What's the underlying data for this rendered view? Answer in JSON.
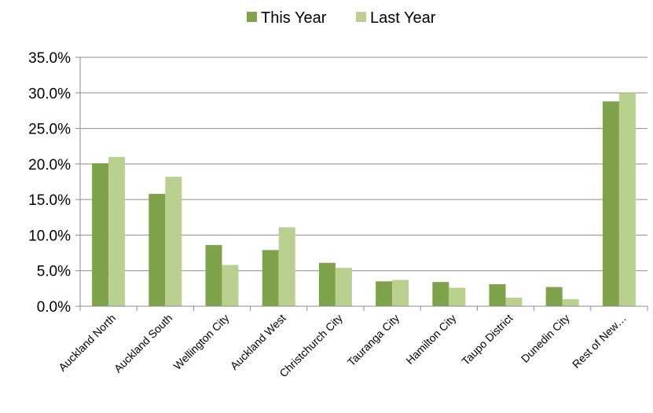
{
  "chart_data": {
    "type": "bar",
    "categories": [
      "Auckland North",
      "Auckland South",
      "Wellington City",
      "Auckland West",
      "Christchurch City",
      "Tauranga City",
      "Hamilton City",
      "Taupo District",
      "Dunedin City",
      "Rest of New…"
    ],
    "series": [
      {
        "name": "This Year",
        "color": "#7fa34a",
        "values": [
          20.1,
          15.8,
          8.6,
          7.9,
          6.1,
          3.5,
          3.4,
          3.1,
          2.7,
          28.8
        ]
      },
      {
        "name": "Last Year",
        "color": "#b9d08f",
        "values": [
          21.0,
          18.2,
          5.8,
          11.1,
          5.4,
          3.7,
          2.6,
          1.2,
          1.0,
          30.0
        ]
      }
    ],
    "yticks": [
      "0.0%",
      "5.0%",
      "10.0%",
      "15.0%",
      "20.0%",
      "25.0%",
      "30.0%",
      "35.0%"
    ],
    "ylim": [
      0,
      35
    ],
    "legend_position": "top-center",
    "grid": true
  }
}
